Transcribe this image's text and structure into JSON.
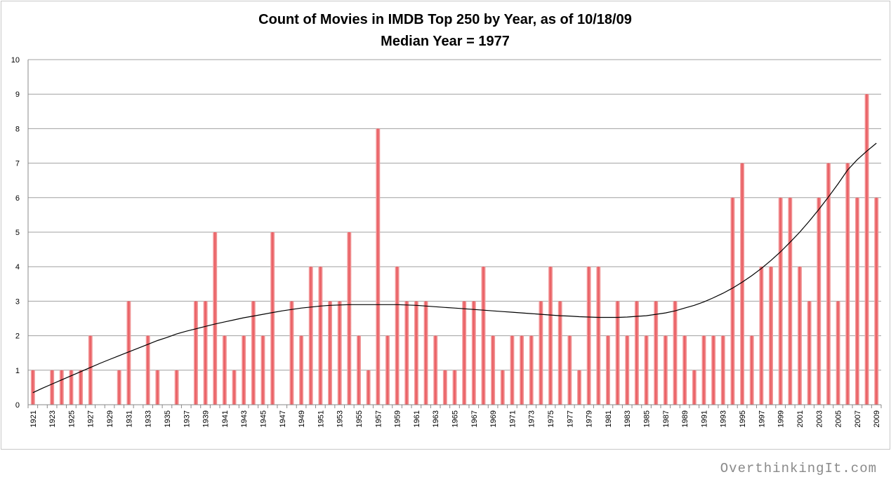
{
  "chart_data": {
    "type": "bar",
    "title": "Count of Movies in IMDB Top 250 by Year, as of 10/18/09",
    "subtitle": "Median Year = 1977",
    "xlabel": "",
    "ylabel": "",
    "ylim": [
      0,
      10
    ],
    "yticks": [
      "0",
      "1",
      "2",
      "3",
      "4",
      "5",
      "6",
      "7",
      "8",
      "9",
      "10"
    ],
    "grid": true,
    "legend": "none",
    "trendline": "polynomial",
    "bar_color": "#e8555a",
    "trend_color": "#000000",
    "categories": [
      "1921",
      "1922",
      "1923",
      "1924",
      "1925",
      "1926",
      "1927",
      "1928",
      "1929",
      "1930",
      "1931",
      "1932",
      "1933",
      "1934",
      "1935",
      "1936",
      "1937",
      "1938",
      "1939",
      "1940",
      "1941",
      "1942",
      "1943",
      "1944",
      "1945",
      "1946",
      "1947",
      "1948",
      "1949",
      "1950",
      "1951",
      "1952",
      "1953",
      "1954",
      "1955",
      "1956",
      "1957",
      "1958",
      "1959",
      "1960",
      "1961",
      "1962",
      "1963",
      "1964",
      "1965",
      "1966",
      "1967",
      "1968",
      "1969",
      "1970",
      "1971",
      "1972",
      "1973",
      "1974",
      "1975",
      "1976",
      "1977",
      "1978",
      "1979",
      "1980",
      "1981",
      "1982",
      "1983",
      "1984",
      "1985",
      "1986",
      "1987",
      "1988",
      "1989",
      "1990",
      "1991",
      "1992",
      "1993",
      "1994",
      "1995",
      "1996",
      "1997",
      "1998",
      "1999",
      "2000",
      "2001",
      "2002",
      "2003",
      "2004",
      "2005",
      "2006",
      "2007",
      "2008",
      "2009"
    ],
    "xtick_labels": [
      "1921",
      "1923",
      "1925",
      "1927",
      "1929",
      "1931",
      "1933",
      "1935",
      "1937",
      "1939",
      "1941",
      "1943",
      "1945",
      "1947",
      "1949",
      "1951",
      "1953",
      "1955",
      "1957",
      "1959",
      "1961",
      "1963",
      "1965",
      "1967",
      "1969",
      "1971",
      "1973",
      "1975",
      "1977",
      "1979",
      "1981",
      "1983",
      "1985",
      "1987",
      "1989",
      "1991",
      "1993",
      "1995",
      "1997",
      "1999",
      "2001",
      "2003",
      "2005",
      "2007",
      "2009"
    ],
    "values": [
      1,
      0,
      1,
      1,
      1,
      1,
      2,
      0,
      0,
      1,
      3,
      0,
      2,
      1,
      0,
      1,
      0,
      3,
      3,
      5,
      2,
      1,
      2,
      3,
      2,
      5,
      0,
      3,
      2,
      4,
      4,
      3,
      3,
      5,
      2,
      1,
      8,
      2,
      4,
      3,
      3,
      3,
      2,
      1,
      1,
      3,
      3,
      4,
      2,
      1,
      2,
      2,
      2,
      3,
      4,
      3,
      2,
      1,
      4,
      4,
      2,
      3,
      2,
      3,
      2,
      3,
      2,
      3,
      2,
      1,
      2,
      2,
      2,
      6,
      7,
      2,
      4,
      4,
      6,
      6,
      4,
      3,
      6,
      7,
      3,
      7,
      6,
      9,
      6
    ],
    "trend_values": [
      0.35,
      0.48,
      0.6,
      0.72,
      0.84,
      0.96,
      1.08,
      1.2,
      1.31,
      1.42,
      1.53,
      1.64,
      1.75,
      1.86,
      1.95,
      2.05,
      2.13,
      2.2,
      2.27,
      2.34,
      2.4,
      2.46,
      2.52,
      2.57,
      2.62,
      2.67,
      2.72,
      2.76,
      2.8,
      2.83,
      2.86,
      2.88,
      2.89,
      2.9,
      2.9,
      2.9,
      2.9,
      2.9,
      2.9,
      2.89,
      2.88,
      2.86,
      2.84,
      2.82,
      2.8,
      2.78,
      2.76,
      2.74,
      2.72,
      2.7,
      2.68,
      2.66,
      2.64,
      2.62,
      2.6,
      2.58,
      2.57,
      2.55,
      2.54,
      2.53,
      2.53,
      2.53,
      2.54,
      2.56,
      2.58,
      2.62,
      2.66,
      2.72,
      2.8,
      2.88,
      2.98,
      3.1,
      3.23,
      3.38,
      3.55,
      3.74,
      3.95,
      4.18,
      4.43,
      4.71,
      5.0,
      5.32,
      5.66,
      6.02,
      6.4,
      6.8,
      7.1,
      7.35,
      7.58
    ]
  },
  "watermark": "OverthinkingIt.com"
}
